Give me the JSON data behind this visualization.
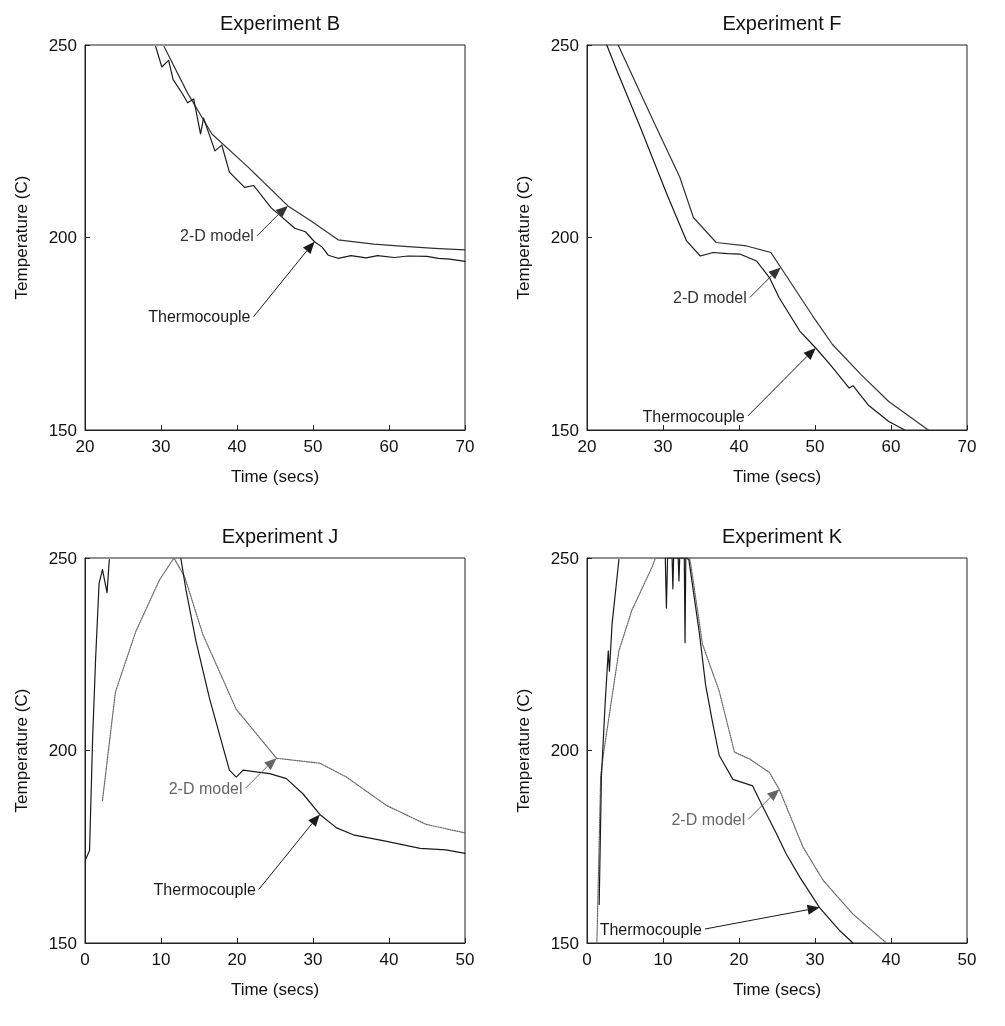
{
  "chart_data": [
    {
      "type": "line",
      "title": "Experiment B",
      "xlabel": "Time (secs)",
      "ylabel": "Temperature (C)",
      "xlim": [
        20,
        70
      ],
      "ylim": [
        150,
        250
      ],
      "xticks": [
        20,
        30,
        40,
        50,
        60,
        70
      ],
      "yticks": [
        150,
        200,
        250
      ],
      "grid": false,
      "marker": "none",
      "series": [
        {
          "name": "2-D model",
          "color": "#333333",
          "line_style": "solid",
          "x": [
            30.4,
            33.5,
            36.7,
            41.5,
            46.7,
            49.8,
            53.3,
            58,
            62,
            66,
            70
          ],
          "values": [
            249.6,
            237.5,
            226.9,
            218.2,
            208.2,
            204.2,
            199.4,
            198.3,
            197.7,
            197.2,
            196.8
          ]
        },
        {
          "name": "Thermocouple",
          "color": "#1a1a1a",
          "line_style": "solid",
          "x": [
            29.3,
            30.1,
            31,
            31.6,
            32.8,
            33.5,
            34.3,
            35.2,
            35.6,
            37.1,
            38,
            39,
            41,
            42.2,
            44.5,
            45.5,
            47.6,
            49,
            50.2,
            51.2,
            52,
            53.3,
            55,
            57,
            58.5,
            60.7,
            62.5,
            65,
            66.5,
            68,
            70
          ],
          "values": [
            249.6,
            244.3,
            246,
            241,
            237.4,
            235,
            236,
            226.9,
            231,
            222.5,
            224,
            217,
            213,
            213.5,
            207.7,
            206,
            202.4,
            201.5,
            198.9,
            197.5,
            195.4,
            194.6,
            195.3,
            194.7,
            195.3,
            194.8,
            195.2,
            195.1,
            194.6,
            194.4,
            193.8
          ]
        }
      ]
    },
    {
      "type": "line",
      "title": "Experiment F",
      "xlabel": "Time (secs)",
      "ylabel": "Temperature (C)",
      "xlim": [
        20,
        70
      ],
      "ylim": [
        150,
        250
      ],
      "xticks": [
        20,
        30,
        40,
        50,
        60,
        70
      ],
      "yticks": [
        150,
        200,
        250
      ],
      "grid": false,
      "marker": "none",
      "series": [
        {
          "name": "2-D model",
          "color": "#333333",
          "line_style": "solid",
          "x": [
            24.1,
            28.7,
            32.2,
            34,
            37,
            41,
            44.2,
            45.5,
            49.7,
            52.3,
            56,
            59.7,
            64.9
          ],
          "values": [
            250,
            230.4,
            215.7,
            205.2,
            198.7,
            197.8,
            196.1,
            192.2,
            179.6,
            172.2,
            164.5,
            157.4,
            150
          ]
        },
        {
          "name": "Thermocouple",
          "color": "#1a1a1a",
          "line_style": "solid",
          "x": [
            22.6,
            23.9,
            27,
            30.5,
            33.1,
            34.9,
            36.6,
            38.5,
            40.1,
            42.3,
            44,
            45.3,
            48,
            50.1,
            52,
            54.5,
            55,
            57,
            59.7,
            61.8
          ],
          "values": [
            250,
            243.5,
            228.7,
            211.3,
            199.1,
            195.2,
            196.1,
            195.8,
            195.7,
            193.9,
            189.6,
            184.3,
            175.7,
            171.3,
            167,
            160.9,
            161.5,
            156.5,
            152.2,
            150
          ]
        }
      ]
    },
    {
      "type": "line",
      "title": "Experiment J",
      "xlabel": "Time (secs)",
      "ylabel": "Temperature (C)",
      "xlim": [
        0,
        50
      ],
      "ylim": [
        150,
        250
      ],
      "xticks": [
        0,
        10,
        20,
        30,
        40,
        50
      ],
      "yticks": [
        150,
        200,
        250
      ],
      "grid": false,
      "marker": "none",
      "series": [
        {
          "name": "2-D model",
          "color": "#666666",
          "line_style": "dotted",
          "x": [
            2.3,
            4,
            6.7,
            9.8,
            11.7,
            13.1,
            15.5,
            19.9,
            25.2,
            30.9,
            34.4,
            39.7,
            44.9,
            50
          ],
          "values": [
            187,
            215.2,
            231,
            244.3,
            250,
            245.2,
            230.2,
            210.7,
            198,
            196.7,
            193.1,
            185.7,
            180.8,
            178.6
          ]
        },
        {
          "name": "Thermocouple",
          "color": "#1a1a1a",
          "line_style": "solid",
          "x": [
            0.1,
            0.6,
            1,
            1.4,
            1.85,
            2.3,
            2.9,
            3.2,
            null,
            12.6,
            13.3,
            14.6,
            16.4,
            19,
            19.9,
            20.8,
            24.3,
            26.5,
            28.7,
            30.9,
            33.1,
            35.3,
            39.7,
            44.1,
            47.5,
            50
          ],
          "values": [
            171.8,
            174,
            203,
            224,
            243.4,
            247,
            241,
            249.6,
            null,
            250,
            241.6,
            228.4,
            213.4,
            194.9,
            193.1,
            194.9,
            194,
            192.7,
            188.7,
            183.4,
            179.9,
            178.1,
            176.4,
            174.6,
            174.2,
            173.3
          ]
        }
      ]
    },
    {
      "type": "line",
      "title": "Experiment K",
      "xlabel": "Time (secs)",
      "ylabel": "Temperature (C)",
      "xlim": [
        0,
        50
      ],
      "ylim": [
        150,
        250
      ],
      "xticks": [
        0,
        10,
        20,
        30,
        40,
        50
      ],
      "yticks": [
        150,
        200,
        250
      ],
      "grid": false,
      "marker": "none",
      "series": [
        {
          "name": "2-D model",
          "color": "#666666",
          "line_style": "dotted",
          "x": [
            1.3,
            1.8,
            2.2,
            4.2,
            5.9,
            8.6,
            9,
            13.5,
            13.7,
            15.2,
            17.4,
            19.4,
            21.4,
            24,
            25.3,
            28.4,
            31.1,
            35,
            39.4
          ],
          "values": [
            150,
            193.4,
            199.6,
            225.9,
            236.4,
            247.8,
            250,
            250,
            247.8,
            227.6,
            215.4,
            199.6,
            197.8,
            194.3,
            189.9,
            175,
            166.2,
            157.5,
            150
          ]
        },
        {
          "name": "Thermocouple",
          "color": "#1a1a1a",
          "line_style": "solid",
          "x": [
            1.6,
            1.9,
            2.4,
            2.8,
            2.95,
            3.3,
            4.2,
            null,
            10.3,
            10.45,
            10.6,
            11.2,
            11.3,
            11.4,
            12,
            12.1,
            12.2,
            12.8,
            12.9,
            13,
            13.4,
            14.8,
            15.6,
            16.5,
            17.4,
            19.2,
            21.8,
            23.1,
            24.9,
            26.2,
            28,
            30.6,
            33.3,
            35
          ],
          "values": [
            160,
            193.4,
            212.7,
            225.9,
            220.6,
            232.9,
            249.6,
            null,
            250,
            237,
            250,
            250,
            242,
            250,
            250,
            244,
            250,
            250,
            228,
            250,
            249.6,
            230.3,
            217.1,
            207.5,
            198.7,
            192.5,
            190.8,
            185.5,
            178.5,
            173.2,
            167.1,
            159.2,
            153.1,
            150
          ]
        }
      ]
    }
  ]
}
